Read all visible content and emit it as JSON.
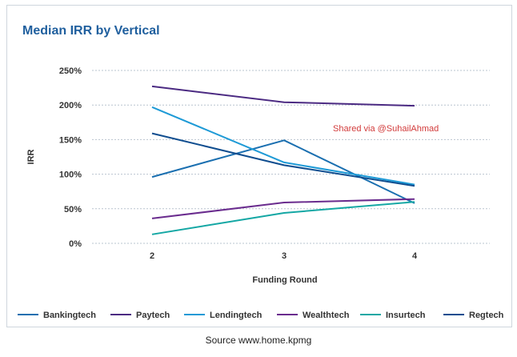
{
  "chart_data": {
    "type": "line",
    "title": "Median IRR by Vertical",
    "xlabel": "Funding Round",
    "ylabel": "IRR",
    "categories": [
      "2",
      "3",
      "4"
    ],
    "y_ticks": [
      "0%",
      "50%",
      "100%",
      "150%",
      "200%",
      "250%"
    ],
    "ylim": [
      0,
      250
    ],
    "grid": "horizontal dashed",
    "legend_position": "bottom",
    "series": [
      {
        "name": "Bankingtech",
        "color": "#1a6fb0",
        "values": [
          96,
          149,
          58
        ]
      },
      {
        "name": "Paytech",
        "color": "#4b2a82",
        "values": [
          227,
          204,
          199
        ]
      },
      {
        "name": "Lendingtech",
        "color": "#1e9ad6",
        "values": [
          197,
          117,
          85
        ]
      },
      {
        "name": "Wealthtech",
        "color": "#6a2c8e",
        "values": [
          36,
          59,
          64
        ]
      },
      {
        "name": "Insurtech",
        "color": "#14a7a4",
        "values": [
          13,
          44,
          60
        ]
      },
      {
        "name": "Regtech",
        "color": "#0f4d8f",
        "values": [
          159,
          113,
          83
        ]
      }
    ],
    "annotation": "Shared via @SuhailAhmad",
    "annotation_color": "#d23b3b"
  },
  "source_text": "Source www.home.kpmg"
}
